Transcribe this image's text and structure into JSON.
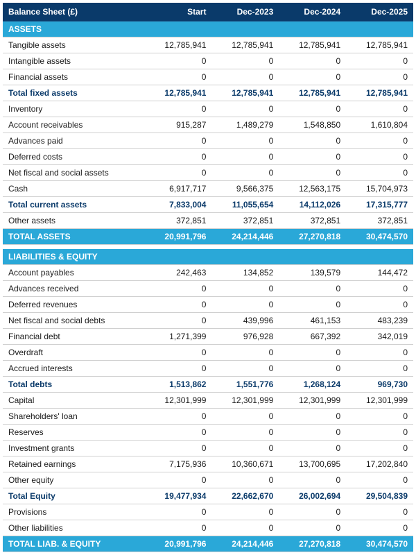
{
  "colors": {
    "header_bg": "#0a3a6a",
    "section_bg": "#2aa8d8",
    "total_bg": "#2aa8d8",
    "bold_text": "#0a3a6a"
  },
  "header": [
    "Balance Sheet (£)",
    "Start",
    "Dec-2023",
    "Dec-2024",
    "Dec-2025"
  ],
  "sections": [
    {
      "label": "ASSETS",
      "rows": [
        {
          "cells": [
            "Tangible assets",
            "12,785,941",
            "12,785,941",
            "12,785,941",
            "12,785,941"
          ]
        },
        {
          "cells": [
            "Intangible assets",
            "0",
            "0",
            "0",
            "0"
          ]
        },
        {
          "cells": [
            "Financial assets",
            "0",
            "0",
            "0",
            "0"
          ]
        },
        {
          "cells": [
            "Total fixed assets",
            "12,785,941",
            "12,785,941",
            "12,785,941",
            "12,785,941"
          ],
          "bold": true
        },
        {
          "cells": [
            "Inventory",
            "0",
            "0",
            "0",
            "0"
          ]
        },
        {
          "cells": [
            "Account receivables",
            "915,287",
            "1,489,279",
            "1,548,850",
            "1,610,804"
          ]
        },
        {
          "cells": [
            "Advances paid",
            "0",
            "0",
            "0",
            "0"
          ]
        },
        {
          "cells": [
            "Deferred costs",
            "0",
            "0",
            "0",
            "0"
          ]
        },
        {
          "cells": [
            "Net fiscal and social assets",
            "0",
            "0",
            "0",
            "0"
          ]
        },
        {
          "cells": [
            "Cash",
            "6,917,717",
            "9,566,375",
            "12,563,175",
            "15,704,973"
          ]
        },
        {
          "cells": [
            "Total current assets",
            "7,833,004",
            "11,055,654",
            "14,112,026",
            "17,315,777"
          ],
          "bold": true
        },
        {
          "cells": [
            "Other assets",
            "372,851",
            "372,851",
            "372,851",
            "372,851"
          ]
        }
      ],
      "total": [
        "TOTAL ASSETS",
        "20,991,796",
        "24,214,446",
        "27,270,818",
        "30,474,570"
      ]
    },
    {
      "label": "LIABILITIES & EQUITY",
      "rows": [
        {
          "cells": [
            "Account payables",
            "242,463",
            "134,852",
            "139,579",
            "144,472"
          ]
        },
        {
          "cells": [
            "Advances received",
            "0",
            "0",
            "0",
            "0"
          ]
        },
        {
          "cells": [
            "Deferred revenues",
            "0",
            "0",
            "0",
            "0"
          ]
        },
        {
          "cells": [
            "Net fiscal and social debts",
            "0",
            "439,996",
            "461,153",
            "483,239"
          ]
        },
        {
          "cells": [
            "Financial debt",
            "1,271,399",
            "976,928",
            "667,392",
            "342,019"
          ]
        },
        {
          "cells": [
            "Overdraft",
            "0",
            "0",
            "0",
            "0"
          ]
        },
        {
          "cells": [
            "Accrued interests",
            "0",
            "0",
            "0",
            "0"
          ]
        },
        {
          "cells": [
            "Total debts",
            "1,513,862",
            "1,551,776",
            "1,268,124",
            "969,730"
          ],
          "bold": true
        },
        {
          "cells": [
            "Capital",
            "12,301,999",
            "12,301,999",
            "12,301,999",
            "12,301,999"
          ]
        },
        {
          "cells": [
            "Shareholders' loan",
            "0",
            "0",
            "0",
            "0"
          ]
        },
        {
          "cells": [
            "Reserves",
            "0",
            "0",
            "0",
            "0"
          ]
        },
        {
          "cells": [
            "Investment grants",
            "0",
            "0",
            "0",
            "0"
          ]
        },
        {
          "cells": [
            "Retained earnings",
            "7,175,936",
            "10,360,671",
            "13,700,695",
            "17,202,840"
          ]
        },
        {
          "cells": [
            "Other equity",
            "0",
            "0",
            "0",
            "0"
          ]
        },
        {
          "cells": [
            "Total Equity",
            "19,477,934",
            "22,662,670",
            "26,002,694",
            "29,504,839"
          ],
          "bold": true
        },
        {
          "cells": [
            "Provisions",
            "0",
            "0",
            "0",
            "0"
          ]
        },
        {
          "cells": [
            "Other liabilities",
            "0",
            "0",
            "0",
            "0"
          ]
        }
      ],
      "total": [
        "TOTAL LIAB. & EQUITY",
        "20,991,796",
        "24,214,446",
        "27,270,818",
        "30,474,570"
      ]
    }
  ]
}
